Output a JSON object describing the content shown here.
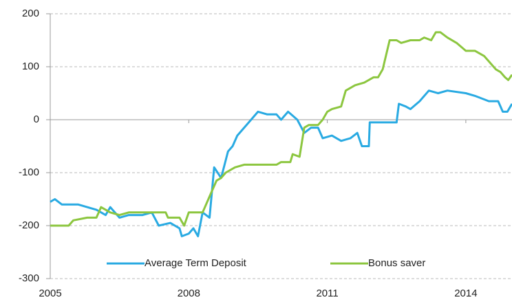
{
  "chart_data": {
    "type": "line",
    "xlim": [
      2005,
      2015
    ],
    "xticks": [
      2005,
      2008,
      2011,
      2014
    ],
    "ylim": [
      -300,
      200
    ],
    "yticks": [
      -300,
      -200,
      -100,
      0,
      100,
      200
    ],
    "grid": true,
    "legend": "bottom",
    "series": [
      {
        "name": "Average Term Deposit",
        "color": "#29aae2",
        "x": [
          2005.0,
          2005.1,
          2005.25,
          2005.4,
          2005.6,
          2005.8,
          2006.0,
          2006.2,
          2006.3,
          2006.5,
          2006.7,
          2007.0,
          2007.2,
          2007.35,
          2007.6,
          2007.8,
          2007.85,
          2008.0,
          2008.1,
          2008.2,
          2008.3,
          2008.45,
          2008.55,
          2008.7,
          2008.85,
          2008.95,
          2009.05,
          2009.2,
          2009.35,
          2009.5,
          2009.7,
          2009.9,
          2010.0,
          2010.15,
          2010.35,
          2010.5,
          2010.65,
          2010.8,
          2010.9,
          2011.1,
          2011.3,
          2011.5,
          2011.65,
          2011.75,
          2011.9,
          2011.92,
          2012.5,
          2012.55,
          2012.7,
          2012.8,
          2013.0,
          2013.2,
          2013.4,
          2013.6,
          2014.0,
          2014.2,
          2014.5,
          2014.7,
          2014.8,
          2014.9,
          2015.0
        ],
        "values": [
          -155,
          -150,
          -160,
          -160,
          -160,
          -165,
          -170,
          -180,
          -165,
          -185,
          -180,
          -180,
          -175,
          -200,
          -195,
          -205,
          -220,
          -215,
          -205,
          -220,
          -175,
          -185,
          -90,
          -110,
          -60,
          -50,
          -30,
          -15,
          0,
          15,
          10,
          10,
          0,
          15,
          0,
          -25,
          -15,
          -15,
          -35,
          -30,
          -40,
          -35,
          -25,
          -50,
          -50,
          -5,
          -5,
          30,
          25,
          20,
          35,
          55,
          50,
          55,
          50,
          45,
          35,
          35,
          15,
          15,
          30
        ]
      },
      {
        "name": "Bonus saver",
        "color": "#8cc63f",
        "x": [
          2005.0,
          2005.4,
          2005.5,
          2005.8,
          2006.0,
          2006.1,
          2006.3,
          2006.5,
          2006.7,
          2007.0,
          2007.5,
          2007.55,
          2007.8,
          2007.9,
          2008.0,
          2008.3,
          2008.45,
          2008.6,
          2008.7,
          2008.8,
          2009.0,
          2009.2,
          2009.9,
          2010.0,
          2010.2,
          2010.25,
          2010.4,
          2010.5,
          2010.6,
          2010.8,
          2010.9,
          2011.0,
          2011.1,
          2011.3,
          2011.4,
          2011.6,
          2011.8,
          2012.0,
          2012.1,
          2012.2,
          2012.35,
          2012.5,
          2012.6,
          2012.8,
          2013.0,
          2013.1,
          2013.25,
          2013.35,
          2013.45,
          2013.6,
          2013.8,
          2014.0,
          2014.2,
          2014.4,
          2014.55,
          2014.65,
          2014.75,
          2014.85,
          2014.92,
          2015.0
        ],
        "values": [
          -200,
          -200,
          -190,
          -185,
          -185,
          -165,
          -175,
          -180,
          -175,
          -175,
          -175,
          -185,
          -185,
          -200,
          -175,
          -175,
          -145,
          -115,
          -110,
          -100,
          -90,
          -85,
          -85,
          -80,
          -80,
          -65,
          -70,
          -15,
          -10,
          -10,
          0,
          15,
          20,
          25,
          55,
          65,
          70,
          80,
          80,
          95,
          150,
          150,
          145,
          150,
          150,
          155,
          150,
          165,
          165,
          155,
          145,
          130,
          130,
          120,
          105,
          95,
          90,
          80,
          75,
          85
        ]
      }
    ]
  }
}
